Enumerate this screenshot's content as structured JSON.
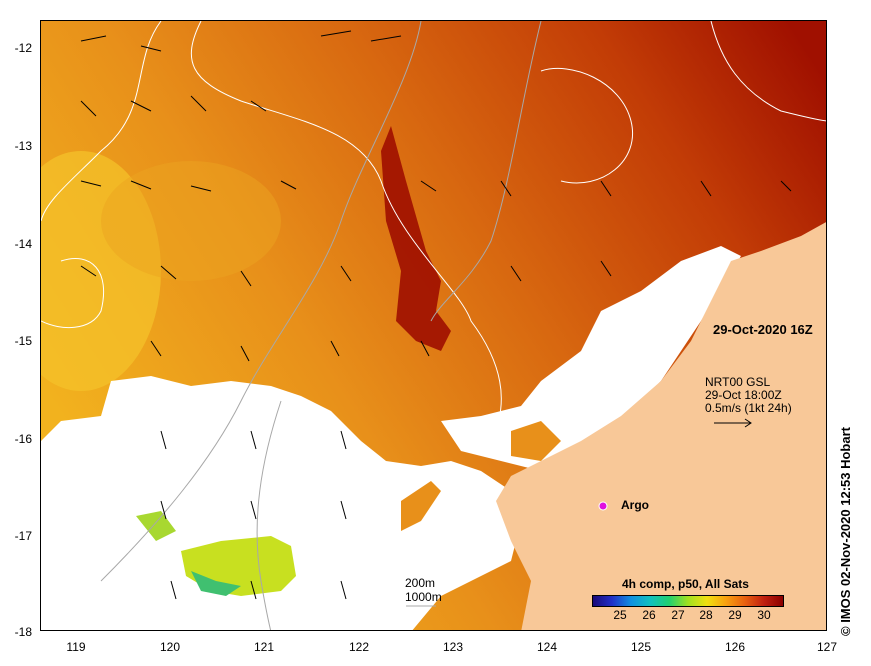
{
  "map": {
    "date_label": "29-Oct-2020 16Z",
    "wind_info": {
      "line1": "NRT00 GSL",
      "line2": "29-Oct 18:00Z",
      "line3": "0.5m/s (1kt 24h)"
    },
    "argo_label": "Argo",
    "contour_legend": {
      "line1": "200m",
      "line2": "1000m"
    },
    "colorbar": {
      "title": "4h comp, p50, All Sats",
      "ticks": [
        "25",
        "26",
        "27",
        "28",
        "29",
        "30"
      ]
    },
    "credit": "© IMOS 02-Nov-2020 12:53 Hobart",
    "lat_ticks": [
      "-12",
      "-13",
      "-14",
      "-15",
      "-16",
      "-17",
      "-18"
    ],
    "lon_ticks": [
      "119",
      "120",
      "121",
      "122",
      "123",
      "124",
      "125",
      "126",
      "127"
    ],
    "colors": {
      "land": "#f8c898",
      "cloud": "#ffffff",
      "sst_warm": "#c84800",
      "sst_mid": "#e07a10",
      "sst_cool": "#f0b020",
      "argo_marker": "#e010e0"
    }
  }
}
